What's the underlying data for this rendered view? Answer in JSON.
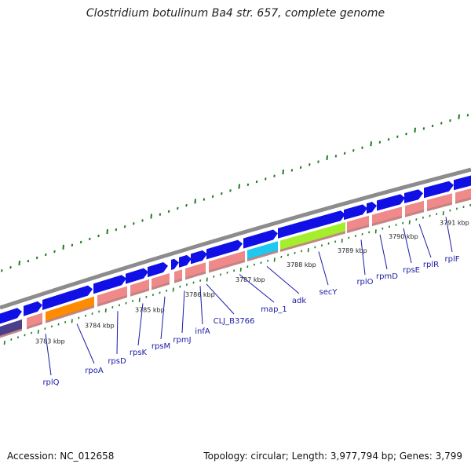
{
  "title": "Clostridium botulinum Ba4 str. 657, complete genome",
  "accession": "Accession: NC_012658",
  "summary": "Topology: circular; Length: 3,977,794 bp; Genes: 3,799",
  "colors": {
    "backbone": "#8c8c8c",
    "gene_fwd": "#1010e6",
    "gene_rev": "#f08a8a",
    "gene_rev_dark": "#b26a6a",
    "tick_green": "#1f7a1f",
    "label": "#1a1aa6",
    "highlight_orange": "#ff8c00",
    "highlight_cyan": "#1ec8f0",
    "highlight_lime": "#a4ee2e",
    "highlight_purple": "#4a3f8a"
  },
  "kbp_labels": [
    "3783 kbp",
    "3784 kbp",
    "3785 kbp",
    "3786 kbp",
    "3787 kbp",
    "3788 kbp",
    "3789 kbp",
    "3790 kbp",
    "3791 kbp"
  ],
  "gene_labels": [
    "rplQ",
    "rpoA",
    "rpsD",
    "rpsK",
    "rpsM",
    "rpmJ",
    "infA",
    "CLJ_B3766",
    "map_1",
    "adk",
    "secY",
    "rplO",
    "rpmD",
    "rpsE",
    "rplR",
    "rplF"
  ]
}
